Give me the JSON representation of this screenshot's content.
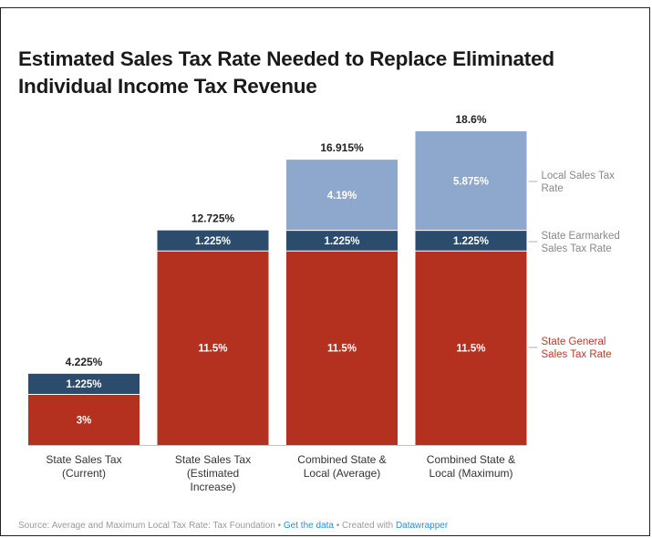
{
  "title": "Estimated Sales Tax Rate Needed to Replace Eliminated Individual Income Tax Revenue",
  "title_lines": [
    "Estimated Sales Tax Rate Needed to Replace Eliminated",
    "Individual Income Tax Revenue"
  ],
  "colors": {
    "general": "#b5311f",
    "earmarked": "#2c4c6e",
    "local": "#8ea7cc",
    "label_general": "#c0392b",
    "label_other": "#888888"
  },
  "chart_data": {
    "type": "bar",
    "stacked": true,
    "categories": [
      "State Sales Tax (Current)",
      "State Sales Tax (Estimated Increase)",
      "Combined State & Local (Average)",
      "Combined State & Local (Maximum)"
    ],
    "category_lines": [
      [
        "State Sales Tax",
        "(Current)"
      ],
      [
        "State Sales Tax",
        "(Estimated",
        "Increase)"
      ],
      [
        "Combined State &",
        "Local (Average)"
      ],
      [
        "Combined State &",
        "Local (Maximum)"
      ]
    ],
    "series": [
      {
        "name": "State General Sales Tax Rate",
        "values": [
          3,
          11.5,
          11.5,
          11.5
        ],
        "labels": [
          "3%",
          "11.5%",
          "11.5%",
          "11.5%"
        ]
      },
      {
        "name": "State Earmarked Sales Tax Rate",
        "values": [
          1.225,
          1.225,
          1.225,
          1.225
        ],
        "labels": [
          "1.225%",
          "1.225%",
          "1.225%",
          "1.225%"
        ]
      },
      {
        "name": "Local Sales Tax Rate",
        "values": [
          0,
          0,
          4.19,
          5.875
        ],
        "labels": [
          "",
          "",
          "4.19%",
          "5.875%"
        ]
      }
    ],
    "totals": [
      4.225,
      12.725,
      16.915,
      18.6
    ],
    "total_labels": [
      "4.225%",
      "12.725%",
      "16.915%",
      "18.6%"
    ],
    "series_label_lines": [
      [
        "State General",
        "Sales Tax Rate"
      ],
      [
        "State Earmarked",
        "Sales Tax Rate"
      ],
      [
        "Local Sales Tax",
        "Rate"
      ]
    ],
    "legend_placement": "right",
    "grid": false,
    "ylim": [
      0,
      18.6
    ]
  },
  "footer": {
    "source": "Source: Average and Maximum Local Tax Rate: Tax Foundation",
    "sep1": " • ",
    "get_data": "Get the data",
    "sep2": " • Created with ",
    "created_with": "Datawrapper"
  }
}
